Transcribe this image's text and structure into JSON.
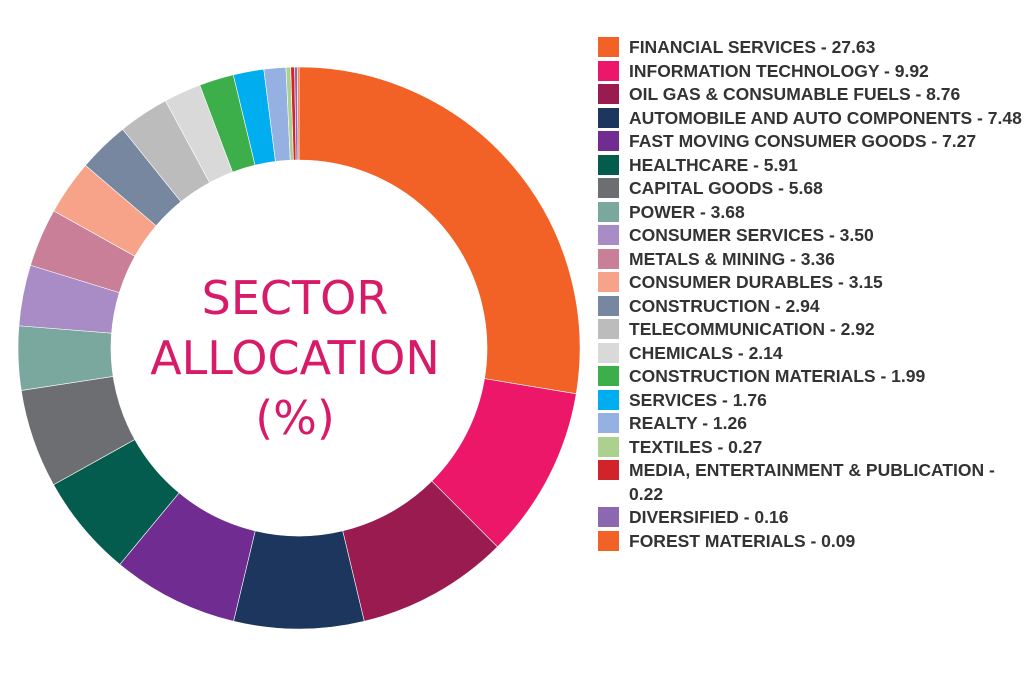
{
  "chart_data": {
    "type": "pie",
    "title_lines": [
      "SECTOR",
      "ALLOCATION",
      "(%)"
    ],
    "categories": [
      "FINANCIAL SERVICES",
      "INFORMATION TECHNOLOGY",
      "OIL GAS & CONSUMABLE FUELS",
      "AUTOMOBILE AND AUTO COMPONENTS",
      "FAST MOVING CONSUMER GOODS",
      "HEALTHCARE",
      "CAPITAL GOODS",
      "POWER",
      "CONSUMER SERVICES",
      "METALS & MINING",
      "CONSUMER DURABLES",
      "CONSTRUCTION",
      "TELECOMMUNICATION",
      "CHEMICALS",
      "CONSTRUCTION MATERIALS",
      "SERVICES",
      "REALTY",
      "TEXTILES",
      "MEDIA, ENTERTAINMENT & PUBLICATION",
      "DIVERSIFIED",
      "FOREST MATERIALS"
    ],
    "values": [
      27.63,
      9.92,
      8.76,
      7.48,
      7.27,
      5.91,
      5.68,
      3.68,
      3.5,
      3.36,
      3.15,
      2.94,
      2.92,
      2.14,
      1.99,
      1.76,
      1.26,
      0.27,
      0.22,
      0.16,
      0.09
    ],
    "colors": [
      "#f26126",
      "#ec1768",
      "#9a1b4f",
      "#1c365e",
      "#702c91",
      "#045c4f",
      "#6d6e71",
      "#7aa89e",
      "#a98bc6",
      "#c87f97",
      "#f7a38a",
      "#7887a0",
      "#bcbcbc",
      "#d9d9d9",
      "#3cae4a",
      "#00adef",
      "#95b1e1",
      "#acd08e",
      "#d2232a",
      "#8b68b0",
      "#f26126"
    ],
    "legend_labels": [
      "FINANCIAL SERVICES - 27.63",
      "INFORMATION TECHNOLOGY - 9.92",
      "OIL GAS & CONSUMABLE FUELS - 8.76",
      "AUTOMOBILE AND AUTO COMPONENTS - 7.48",
      "FAST MOVING CONSUMER GOODS - 7.27",
      "HEALTHCARE - 5.91",
      "CAPITAL GOODS - 5.68",
      "POWER - 3.68",
      "CONSUMER SERVICES - 3.50",
      "METALS & MINING - 3.36",
      "CONSUMER DURABLES - 3.15",
      "CONSTRUCTION - 2.94",
      "TELECOMMUNICATION - 2.92",
      "CHEMICALS - 2.14",
      "CONSTRUCTION MATERIALS - 1.99",
      "SERVICES - 1.76",
      "REALTY - 1.26",
      "TEXTILES - 0.27",
      "MEDIA, ENTERTAINMENT & PUBLICATION - 0.22",
      "DIVERSIFIED - 0.16",
      "FOREST MATERIALS - 0.09"
    ],
    "legend_position": "right",
    "style": "donut"
  }
}
